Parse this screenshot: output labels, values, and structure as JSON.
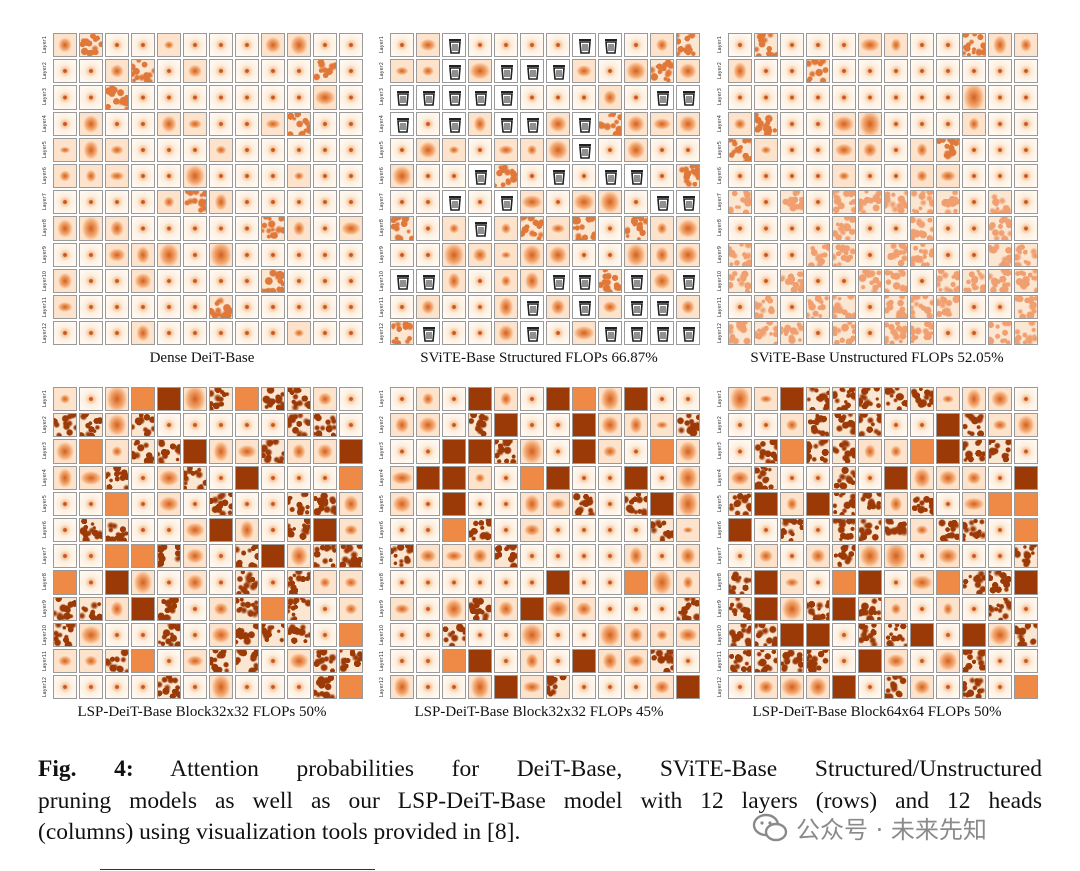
{
  "panels": [
    {
      "title": "Dense DeiT-Base"
    },
    {
      "title": "SViTE-Base Structured FLOPs 66.87%"
    },
    {
      "title": "SViTE-Base Unstructured FLOPs 52.05%"
    },
    {
      "title": "LSP-DeiT-Base Block32x32 FLOPs 50%"
    },
    {
      "title": "LSP-DeiT-Base Block32x32 FLOPs 45%"
    },
    {
      "title": "LSP-DeiT-Base Block64x64 FLOPs 50%"
    }
  ],
  "layer_labels": [
    "Layer1",
    "Layer2",
    "Layer3",
    "Layer4",
    "Layer5",
    "Layer6",
    "Layer7",
    "Layer8",
    "Layer9",
    "Layer10",
    "Layer11",
    "Layer12"
  ],
  "caption": {
    "label": "Fig. 4:",
    "lines": [
      " Attention probabilities for DeiT-Base, SViTE-Base Structured/Unstructured",
      "pruning models as well as our LSP-DeiT-Base model with 12 layers (rows) and 12 heads",
      "(columns) using visualization tools provided in  [8]."
    ]
  },
  "watermark": "公众号 · 未来先知"
}
